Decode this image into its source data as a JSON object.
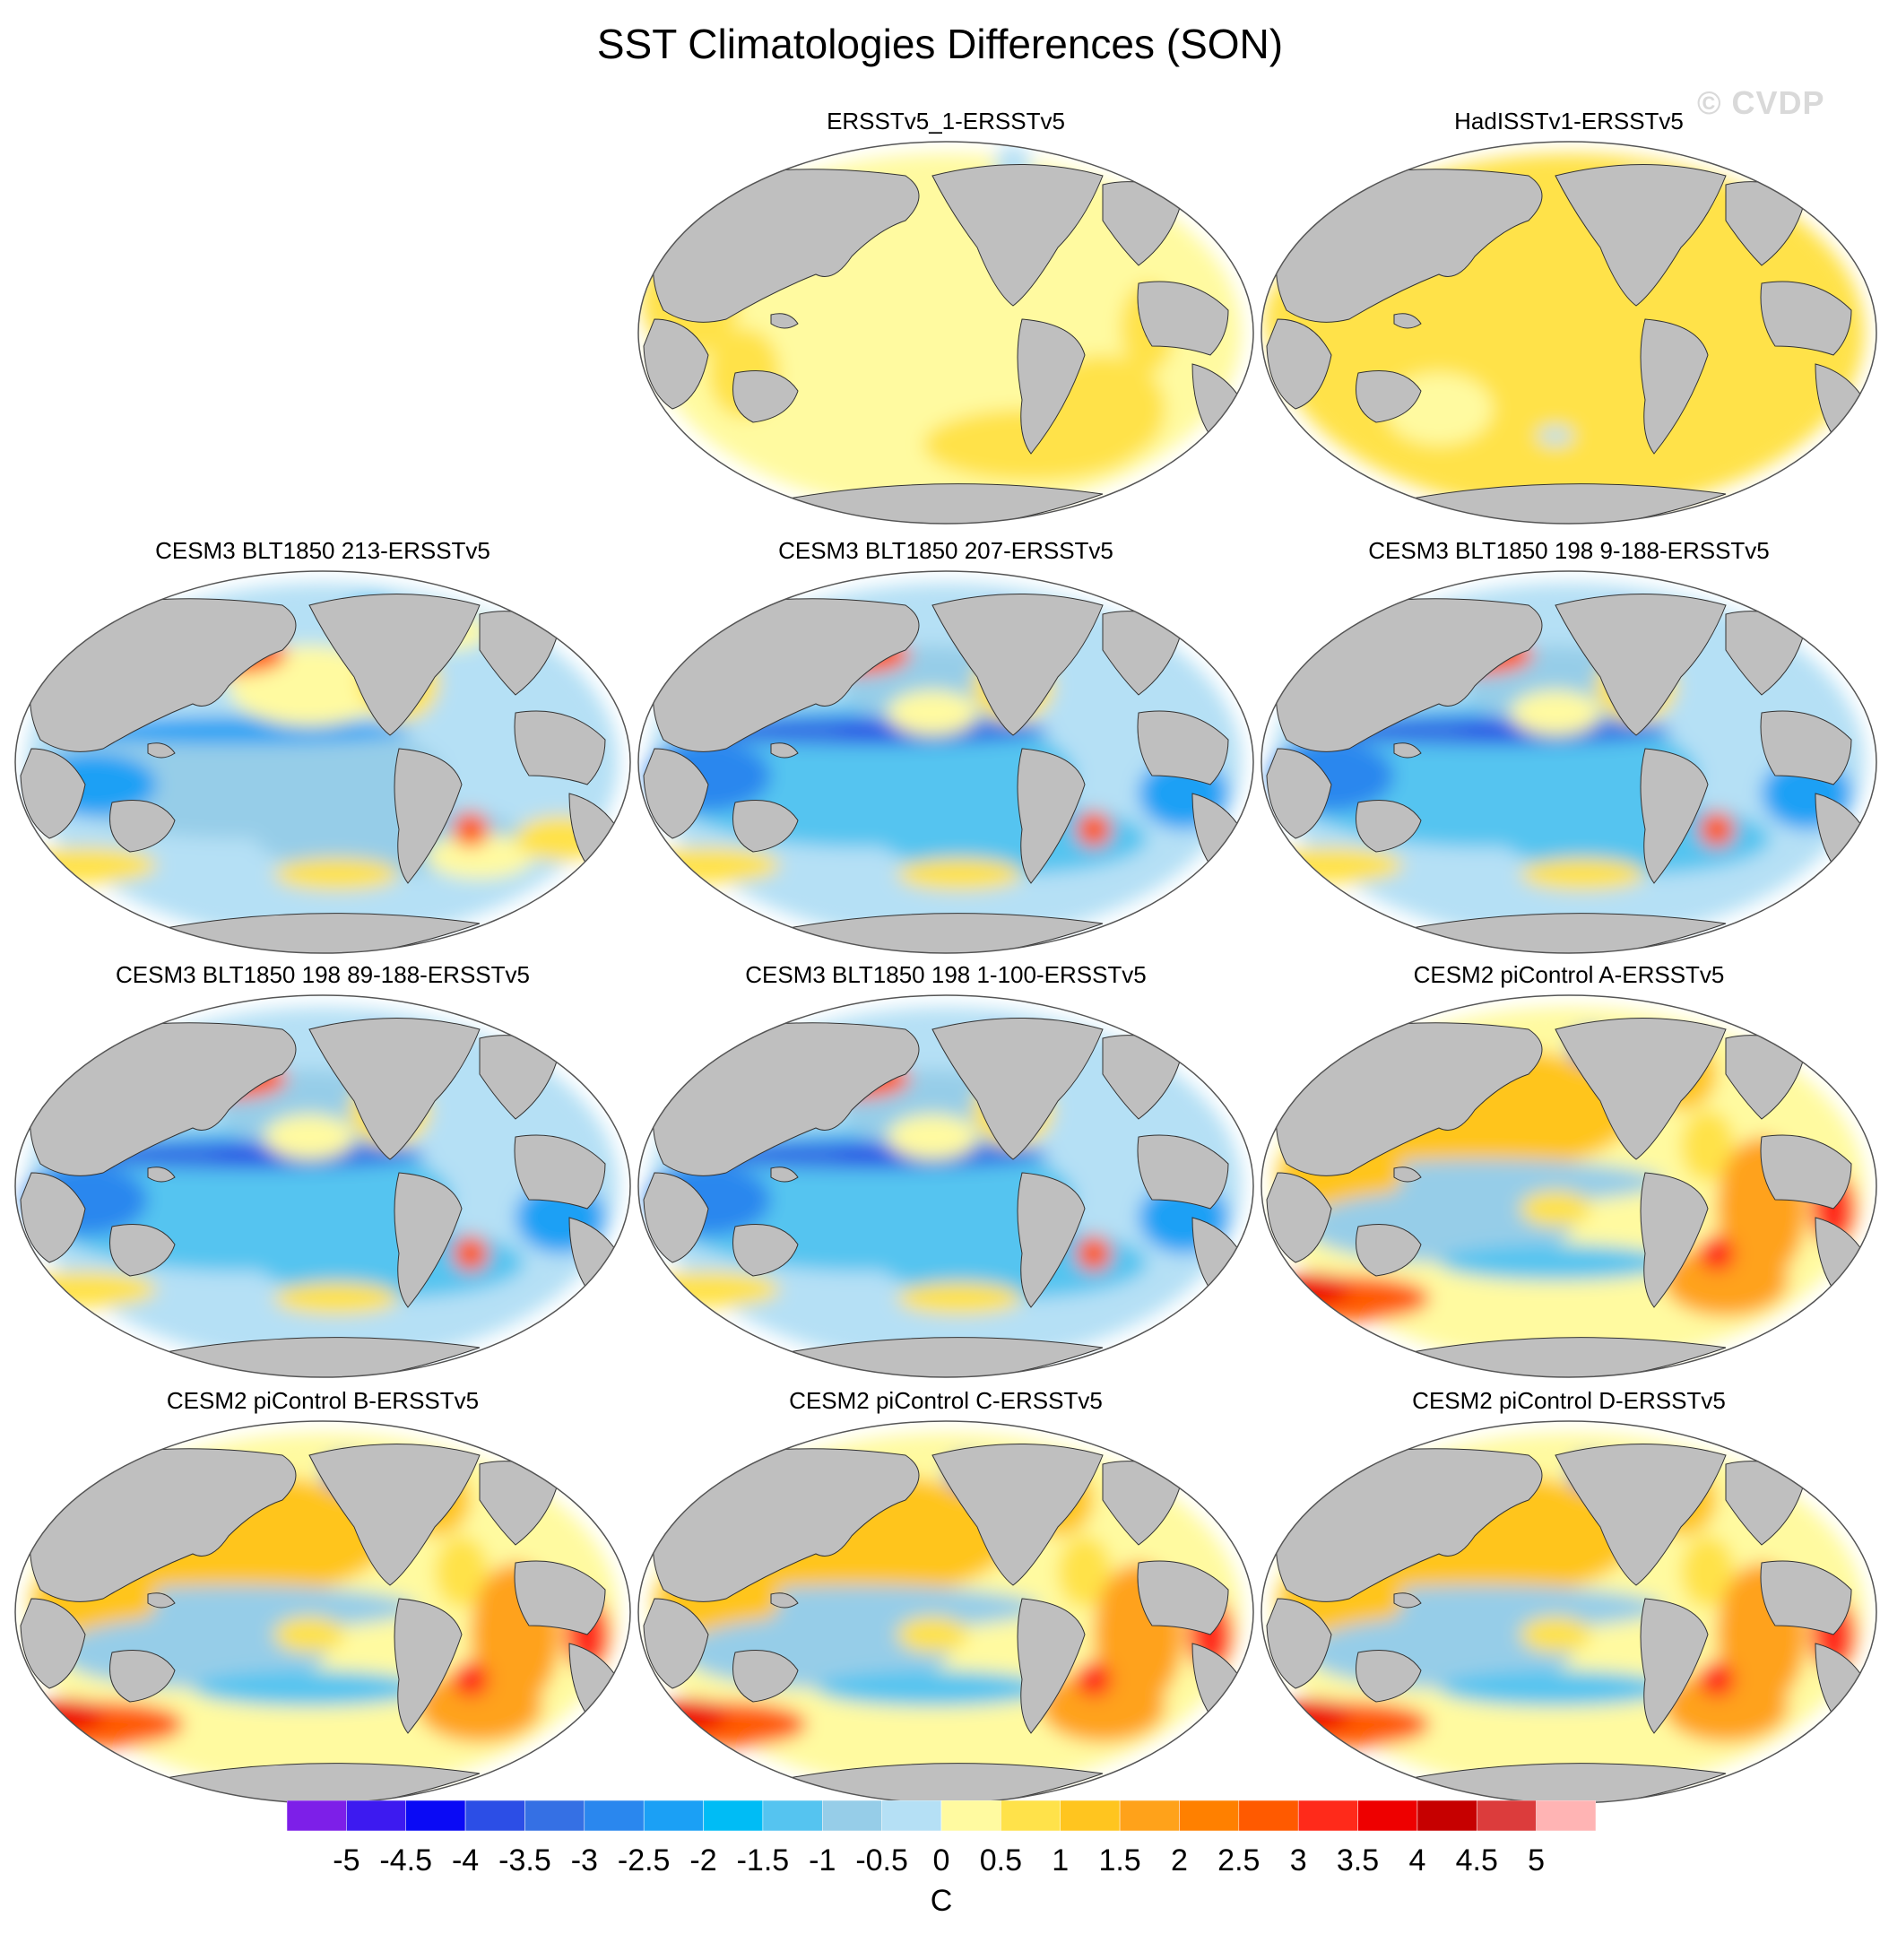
{
  "page": {
    "title": "SST Climatologies Differences (SON)",
    "watermark": "© CVDP"
  },
  "colorbar": {
    "unit": "C",
    "tick_labels": [
      "-5",
      "-4.5",
      "-4",
      "-3.5",
      "-3",
      "-2.5",
      "-2",
      "-1.5",
      "-1",
      "-0.5",
      "0",
      "0.5",
      "1",
      "1.5",
      "2",
      "2.5",
      "3",
      "3.5",
      "4",
      "4.5",
      "5"
    ],
    "colors": [
      "#7d1fe8",
      "#3d1af0",
      "#0a0af5",
      "#2c4ee6",
      "#3570e4",
      "#2a87ee",
      "#1ba0f5",
      "#00bcf5",
      "#55c4f0",
      "#96cde8",
      "#b5e0f5",
      "#fffaa0",
      "#ffe24a",
      "#ffc51f",
      "#ffa21a",
      "#ff8000",
      "#ff5a00",
      "#ff2a1a",
      "#ee0000",
      "#c60000",
      "#dc3c3c",
      "#ffb4b4"
    ]
  },
  "map_colors": {
    "land": "#bfbfbf",
    "coast": "#333333",
    "rim": "#555555"
  },
  "panels": [
    {
      "title": "ERSSTv5_1-ERSSTv5",
      "pattern": "obs1"
    },
    {
      "title": "HadISSTv1-ERSSTv5",
      "pattern": "obs2"
    },
    {
      "title": "CESM3 BLT1850 213-ERSSTv5",
      "pattern": "cesm3a"
    },
    {
      "title": "CESM3 BLT1850 207-ERSSTv5",
      "pattern": "cesm3b"
    },
    {
      "title": "CESM3 BLT1850 198 9-188-ERSSTv5",
      "pattern": "cesm3b"
    },
    {
      "title": "CESM3 BLT1850 198 89-188-ERSSTv5",
      "pattern": "cesm3b"
    },
    {
      "title": "CESM3 BLT1850 198 1-100-ERSSTv5",
      "pattern": "cesm3b"
    },
    {
      "title": "CESM2 piControl A-ERSSTv5",
      "pattern": "cesm2"
    },
    {
      "title": "CESM2 piControl B-ERSSTv5",
      "pattern": "cesm2"
    },
    {
      "title": "CESM2 piControl C-ERSSTv5",
      "pattern": "cesm2"
    },
    {
      "title": "CESM2 piControl D-ERSSTv5",
      "pattern": "cesm2"
    }
  ]
}
